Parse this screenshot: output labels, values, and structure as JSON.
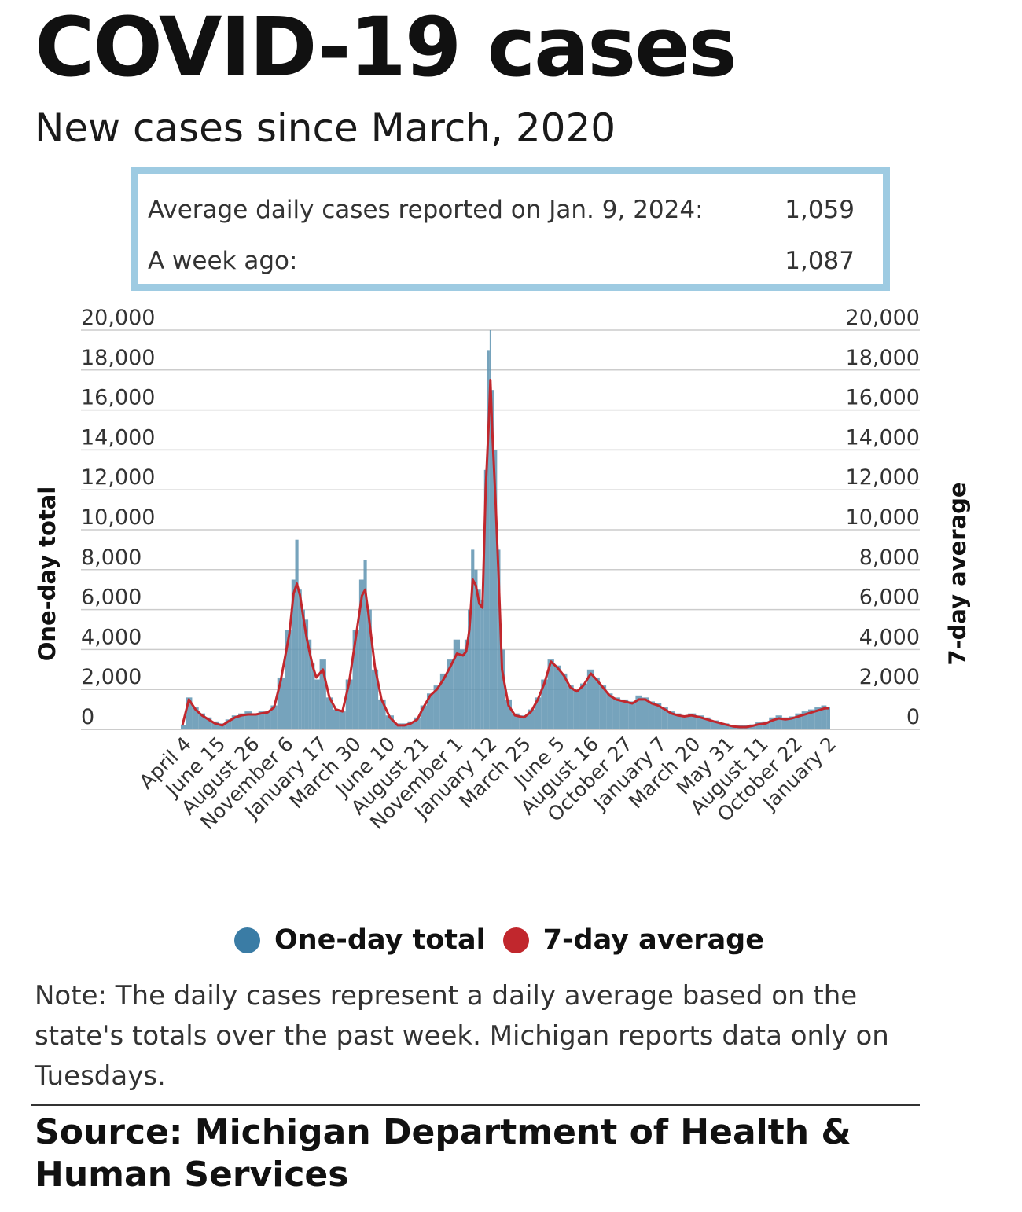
{
  "title": "COVID-19 cases",
  "subtitle": "New cases since March, 2020",
  "stats": {
    "row1_label": "Average daily cases reported on Jan. 9, 2024:",
    "row1_value": "1,059",
    "row2_label": "A week ago:",
    "row2_value": "1,087"
  },
  "legend": {
    "one_day": "One-day total",
    "seven_day": "7-day average"
  },
  "note": "Note: The daily cases represent a daily average based on the state's totals over the past week. Michigan reports data only on Tuesdays.",
  "source": "Source:  Michigan Department of Health & Human Services",
  "colors": {
    "bars": "#5e93b0",
    "line": "#c1272d",
    "legend_bars": "#3a7ca5",
    "legend_line": "#c1272d",
    "box_border": "#9ecbe2",
    "grid": "#cccccc"
  },
  "chart_data": {
    "type": "bar",
    "ylabel_left": "One-day total",
    "ylabel_right": "7-day average",
    "ylim": [
      0,
      20000
    ],
    "yticks": [
      "20,000",
      "18,000",
      "16,000",
      "14,000",
      "12,000",
      "10,000",
      "8,000",
      "6,000",
      "4,000",
      "2,000",
      "0"
    ],
    "ytick_values": [
      20000,
      18000,
      16000,
      14000,
      12000,
      10000,
      8000,
      6000,
      4000,
      2000,
      0
    ],
    "grid": true,
    "xticks": [
      "April 4",
      "June 15",
      "August 26",
      "November 6",
      "January 17",
      "March 30",
      "June 10",
      "August 21",
      "November 1",
      "January 12",
      "March 25",
      "June 5",
      "August 16",
      "October 27",
      "January 7",
      "March 20",
      "May 31",
      "August 11",
      "October 22",
      "January 2"
    ],
    "x": [
      "2020-03-21",
      "2020-04-04",
      "2020-04-18",
      "2020-05-02",
      "2020-05-16",
      "2020-05-30",
      "2020-06-15",
      "2020-06-28",
      "2020-07-12",
      "2020-07-26",
      "2020-08-09",
      "2020-08-26",
      "2020-09-06",
      "2020-09-20",
      "2020-10-04",
      "2020-10-18",
      "2020-11-06",
      "2020-11-15",
      "2020-11-22",
      "2020-11-29",
      "2020-12-06",
      "2020-12-13",
      "2020-12-20",
      "2020-12-27",
      "2021-01-03",
      "2021-01-17",
      "2021-01-31",
      "2021-02-14",
      "2021-02-28",
      "2021-03-14",
      "2021-03-30",
      "2021-04-11",
      "2021-04-18",
      "2021-04-25",
      "2021-05-09",
      "2021-05-23",
      "2021-06-10",
      "2021-06-27",
      "2021-07-11",
      "2021-07-25",
      "2021-08-08",
      "2021-08-21",
      "2021-09-05",
      "2021-09-19",
      "2021-10-03",
      "2021-10-17",
      "2021-11-01",
      "2021-11-14",
      "2021-11-21",
      "2021-11-28",
      "2021-12-05",
      "2021-12-12",
      "2021-12-19",
      "2021-12-26",
      "2022-01-02",
      "2022-01-09",
      "2022-01-12",
      "2022-01-16",
      "2022-01-23",
      "2022-01-30",
      "2022-02-06",
      "2022-02-20",
      "2022-03-06",
      "2022-03-25",
      "2022-04-10",
      "2022-04-24",
      "2022-05-08",
      "2022-05-22",
      "2022-06-05",
      "2022-06-19",
      "2022-07-03",
      "2022-07-17",
      "2022-07-31",
      "2022-08-16",
      "2022-08-28",
      "2022-09-11",
      "2022-09-25",
      "2022-10-09",
      "2022-10-27",
      "2022-11-13",
      "2022-11-27",
      "2022-12-11",
      "2022-12-25",
      "2023-01-07",
      "2023-01-22",
      "2023-02-05",
      "2023-02-19",
      "2023-03-05",
      "2023-03-20",
      "2023-04-09",
      "2023-04-23",
      "2023-05-07",
      "2023-05-31",
      "2023-06-18",
      "2023-07-02",
      "2023-07-16",
      "2023-07-30",
      "2023-08-11",
      "2023-08-27",
      "2023-09-10",
      "2023-09-24",
      "2023-10-08",
      "2023-10-22",
      "2023-11-05",
      "2023-11-19",
      "2023-12-03",
      "2023-12-17",
      "2023-12-31",
      "2024-01-09"
    ],
    "series": [
      {
        "name": "One-day total",
        "values": [
          200,
          1600,
          1100,
          800,
          600,
          400,
          300,
          500,
          700,
          800,
          900,
          800,
          900,
          900,
          1200,
          2600,
          5000,
          7500,
          9500,
          7000,
          6000,
          5500,
          4500,
          3300,
          2500,
          3500,
          1600,
          1000,
          900,
          2500,
          5000,
          7500,
          8500,
          6000,
          3000,
          1500,
          700,
          300,
          300,
          400,
          600,
          1200,
          1800,
          2200,
          2800,
          3500,
          4500,
          4000,
          4500,
          6000,
          9000,
          8000,
          7000,
          6500,
          13000,
          19000,
          20000,
          17000,
          14000,
          9000,
          4000,
          1500,
          800,
          700,
          1000,
          1600,
          2500,
          3500,
          3200,
          2800,
          2200,
          2000,
          2300,
          3000,
          2600,
          2200,
          1800,
          1600,
          1500,
          1400,
          1700,
          1600,
          1400,
          1300,
          1100,
          900,
          800,
          700,
          800,
          700,
          600,
          450,
          300,
          200,
          200,
          200,
          250,
          350,
          400,
          600,
          700,
          600,
          650,
          800,
          900,
          1000,
          1100,
          1200,
          1100
        ]
      },
      {
        "name": "7-day average",
        "values": [
          200,
          1500,
          1000,
          700,
          500,
          300,
          200,
          400,
          600,
          700,
          750,
          750,
          800,
          850,
          1100,
          2400,
          4800,
          6800,
          7300,
          6700,
          5600,
          4600,
          3800,
          3100,
          2600,
          3000,
          1600,
          1000,
          900,
          2300,
          4800,
          6700,
          7000,
          5800,
          3100,
          1500,
          600,
          200,
          200,
          300,
          500,
          1100,
          1700,
          2000,
          2500,
          3100,
          3800,
          3700,
          3900,
          5000,
          7500,
          7200,
          6300,
          6100,
          12000,
          15600,
          17500,
          15000,
          11500,
          7500,
          3000,
          1200,
          700,
          600,
          900,
          1500,
          2300,
          3400,
          3100,
          2700,
          2100,
          1900,
          2200,
          2800,
          2500,
          2100,
          1700,
          1500,
          1400,
          1300,
          1500,
          1500,
          1300,
          1200,
          1000,
          800,
          700,
          650,
          700,
          600,
          500,
          400,
          250,
          150,
          120,
          120,
          180,
          250,
          300,
          450,
          550,
          500,
          550,
          650,
          750,
          850,
          950,
          1050,
          1059
        ]
      }
    ]
  }
}
